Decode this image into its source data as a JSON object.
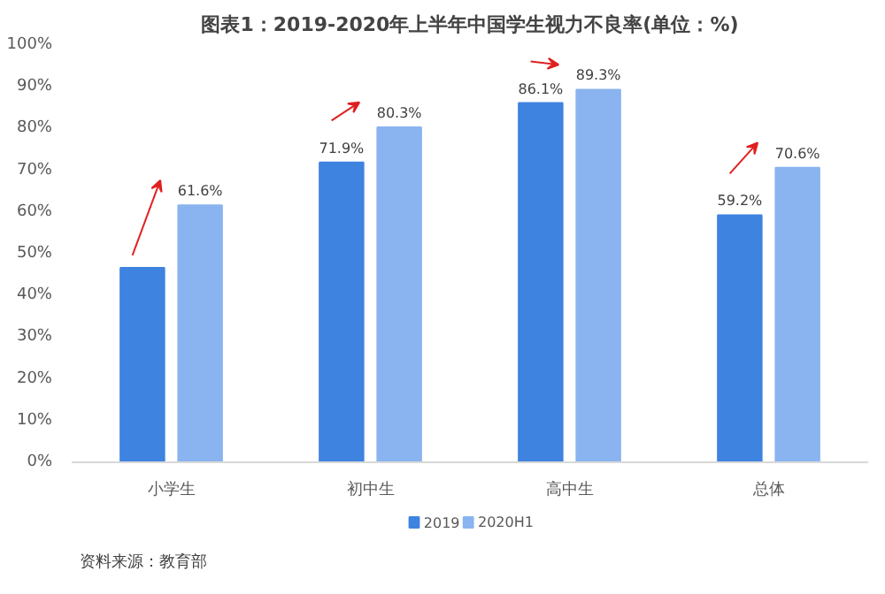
{
  "chart_data": {
    "type": "bar",
    "title": "图表1：2019-2020年上半年中国学生视力不良率(单位：%)",
    "categories": [
      "小学生",
      "初中生",
      "高中生",
      "总体"
    ],
    "series": [
      {
        "name": "2019",
        "color": "#3f83e0",
        "values": [
          46.6,
          71.9,
          86.1,
          59.2
        ],
        "value_labels": [
          null,
          "71.9%",
          "86.1%",
          "59.2%"
        ]
      },
      {
        "name": "2020H1",
        "color": "#8ab4f0",
        "values": [
          61.6,
          80.3,
          89.3,
          70.6
        ],
        "value_labels": [
          "61.6%",
          "80.3%",
          "89.3%",
          "70.6%"
        ]
      }
    ],
    "ylim": [
      0,
      100
    ],
    "yticks": [
      {
        "value": 0,
        "label": "0%"
      },
      {
        "value": 10,
        "label": "10%"
      },
      {
        "value": 20,
        "label": "20%"
      },
      {
        "value": 30,
        "label": "30%"
      },
      {
        "value": 40,
        "label": "40%"
      },
      {
        "value": 50,
        "label": "50%"
      },
      {
        "value": 60,
        "label": "60%"
      },
      {
        "value": 70,
        "label": "70%"
      },
      {
        "value": 80,
        "label": "80%"
      },
      {
        "value": 90,
        "label": "90%"
      },
      {
        "value": 100,
        "label": "100%"
      }
    ],
    "grid": false,
    "legend": "bottom",
    "annotations": [
      "资料来源：教育部"
    ]
  }
}
